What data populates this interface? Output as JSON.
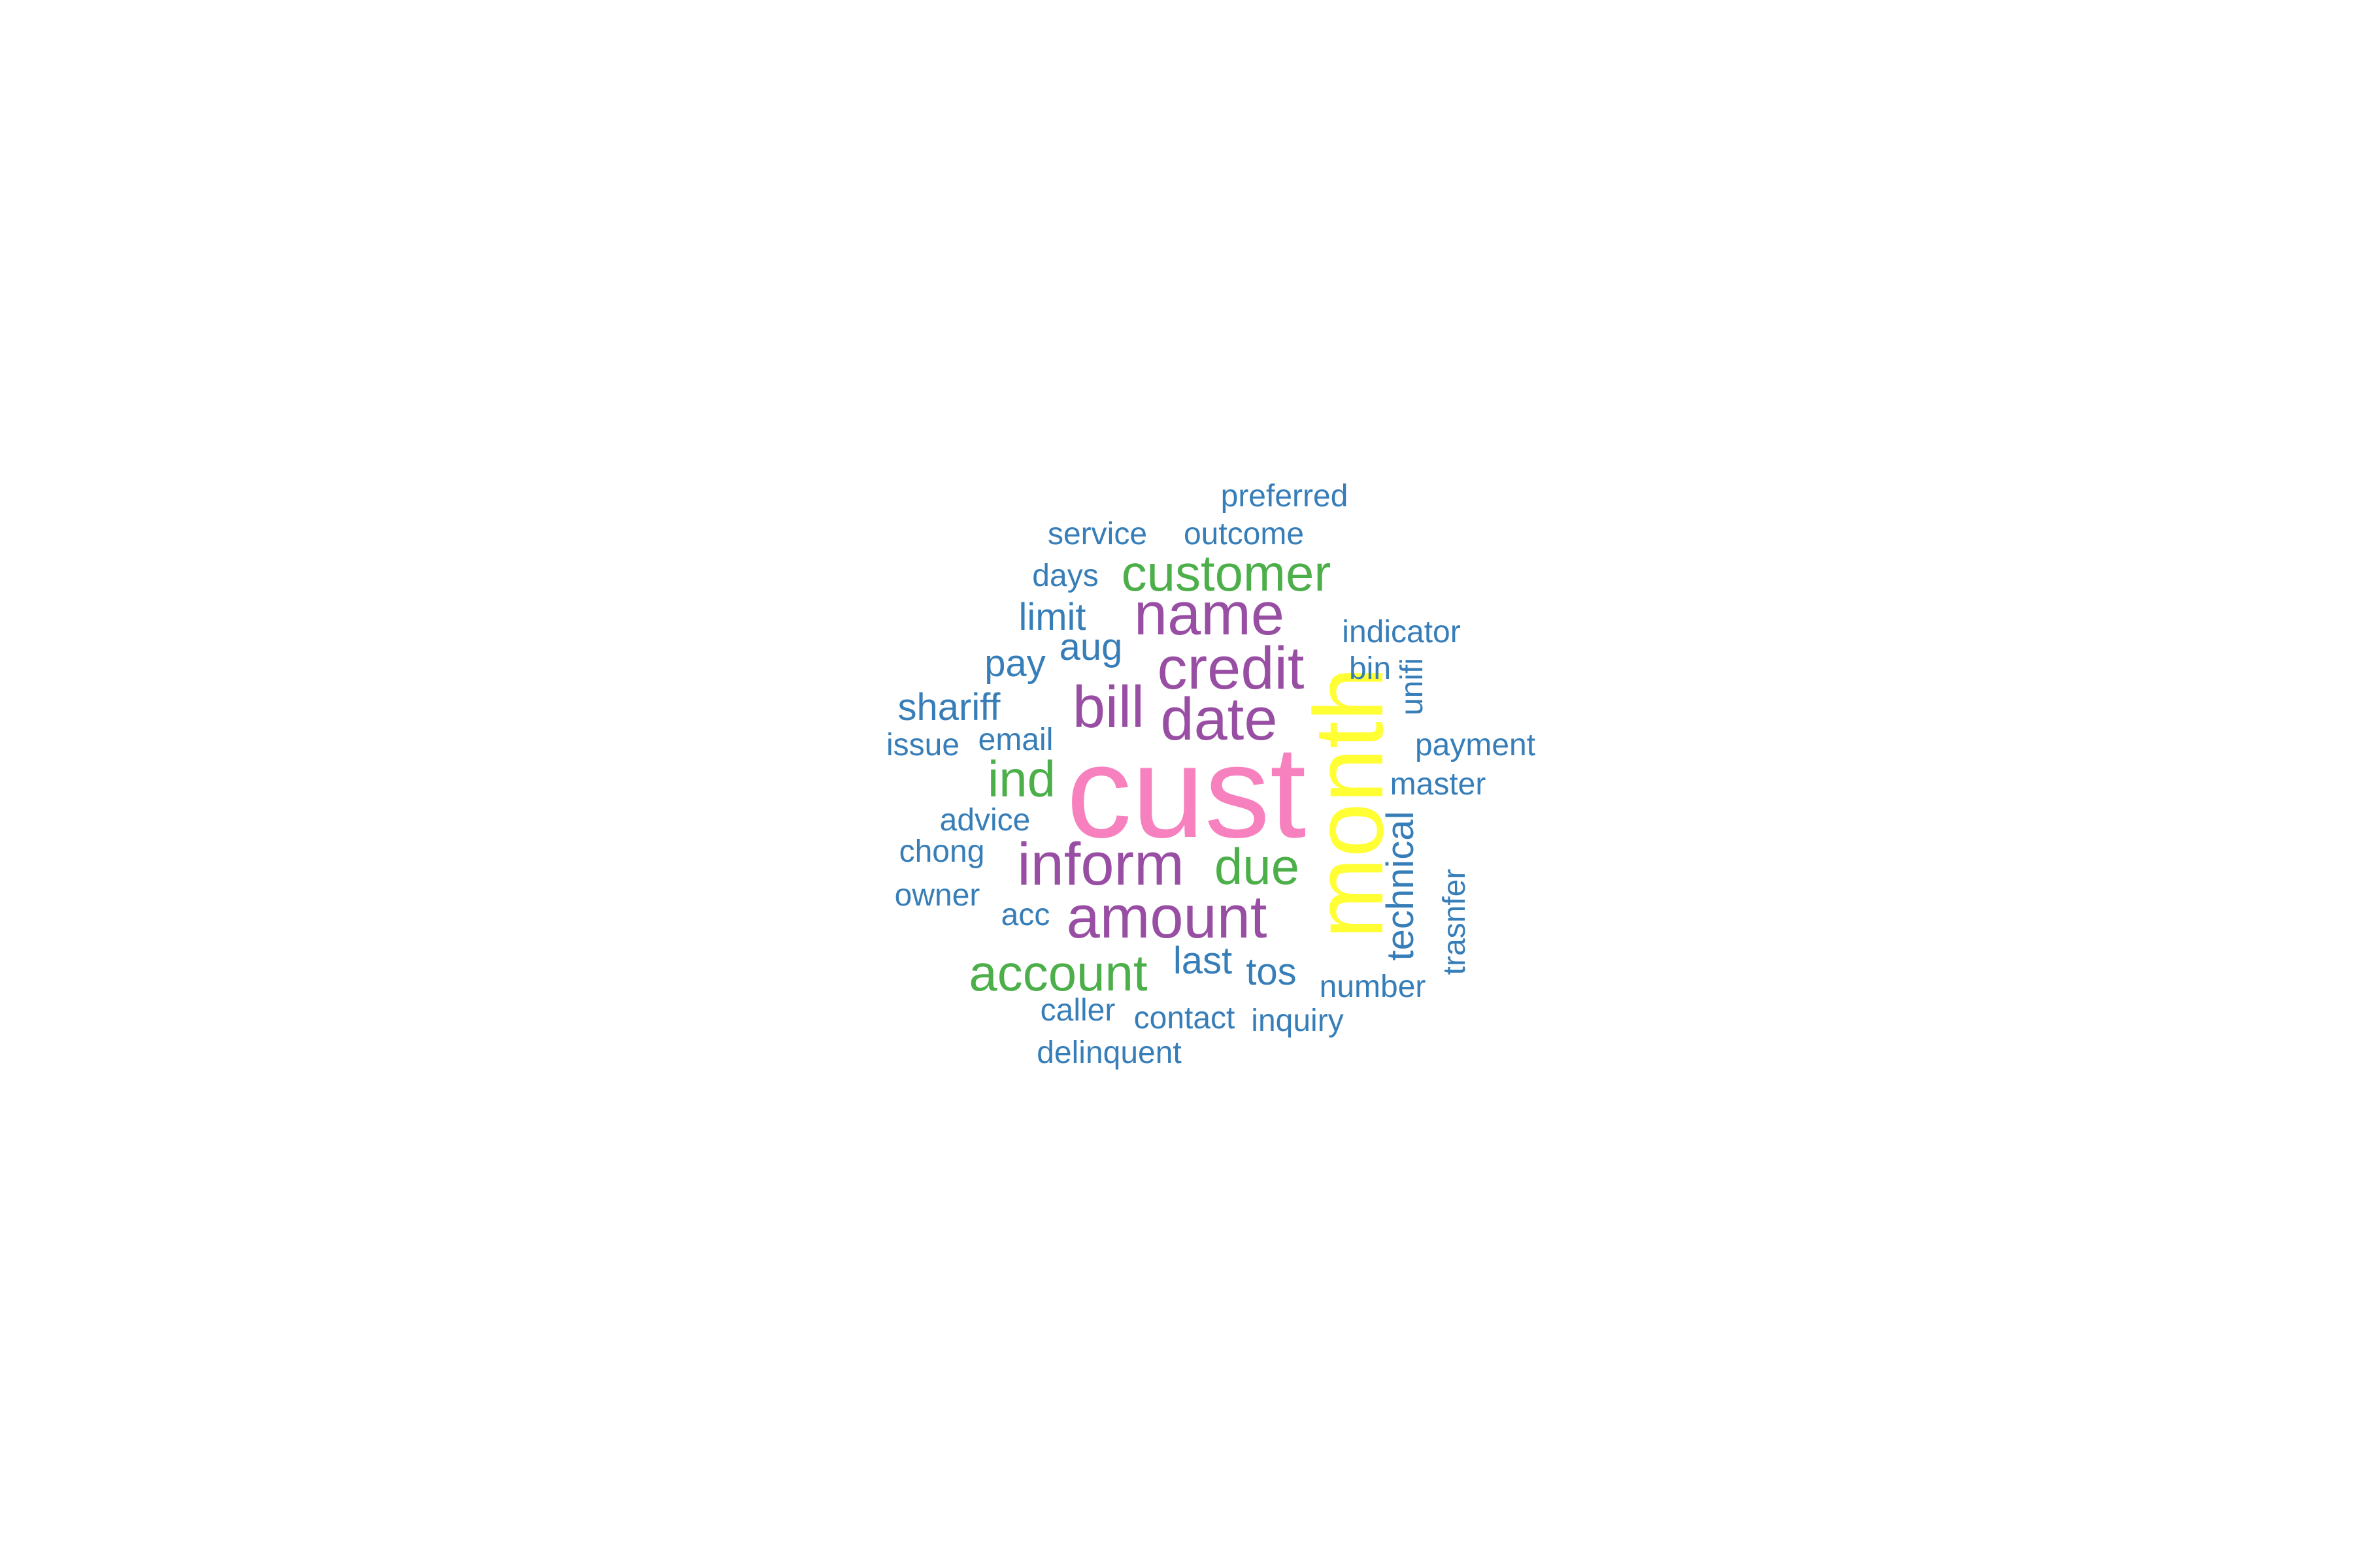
{
  "colors": {
    "background": "#ffffff",
    "pink": "#f781bf",
    "yellow": "#ffff33",
    "purple": "#984ea3",
    "green": "#4daf4a",
    "blue": "#377eb8"
  },
  "words": [
    {
      "text": "cust",
      "color": "pink",
      "vertical": false
    },
    {
      "text": "month",
      "color": "yellow",
      "vertical": true
    },
    {
      "text": "inform",
      "color": "purple",
      "vertical": false
    },
    {
      "text": "amount",
      "color": "purple",
      "vertical": false
    },
    {
      "text": "date",
      "color": "purple",
      "vertical": false
    },
    {
      "text": "credit",
      "color": "purple",
      "vertical": false
    },
    {
      "text": "name",
      "color": "purple",
      "vertical": false
    },
    {
      "text": "bill",
      "color": "purple",
      "vertical": false
    },
    {
      "text": "customer",
      "color": "green",
      "vertical": false
    },
    {
      "text": "account",
      "color": "green",
      "vertical": false
    },
    {
      "text": "due",
      "color": "green",
      "vertical": false
    },
    {
      "text": "ind",
      "color": "green",
      "vertical": false
    },
    {
      "text": "preferred",
      "color": "blue",
      "vertical": false
    },
    {
      "text": "service",
      "color": "blue",
      "vertical": false
    },
    {
      "text": "outcome",
      "color": "blue",
      "vertical": false
    },
    {
      "text": "days",
      "color": "blue",
      "vertical": false
    },
    {
      "text": "limit",
      "color": "blue",
      "vertical": false
    },
    {
      "text": "aug",
      "color": "blue",
      "vertical": false
    },
    {
      "text": "pay",
      "color": "blue",
      "vertical": false
    },
    {
      "text": "indicator",
      "color": "blue",
      "vertical": false
    },
    {
      "text": "bin",
      "color": "blue",
      "vertical": false
    },
    {
      "text": "unifi",
      "color": "blue",
      "vertical": true
    },
    {
      "text": "shariff",
      "color": "blue",
      "vertical": false
    },
    {
      "text": "issue",
      "color": "blue",
      "vertical": false
    },
    {
      "text": "email",
      "color": "blue",
      "vertical": false
    },
    {
      "text": "payment",
      "color": "blue",
      "vertical": false
    },
    {
      "text": "master",
      "color": "blue",
      "vertical": false
    },
    {
      "text": "advice",
      "color": "blue",
      "vertical": false
    },
    {
      "text": "chong",
      "color": "blue",
      "vertical": false
    },
    {
      "text": "technical",
      "color": "blue",
      "vertical": true
    },
    {
      "text": "owner",
      "color": "blue",
      "vertical": false
    },
    {
      "text": "acc",
      "color": "blue",
      "vertical": false
    },
    {
      "text": "trasnfer",
      "color": "blue",
      "vertical": true
    },
    {
      "text": "last",
      "color": "blue",
      "vertical": false
    },
    {
      "text": "tos",
      "color": "blue",
      "vertical": false
    },
    {
      "text": "number",
      "color": "blue",
      "vertical": false
    },
    {
      "text": "caller",
      "color": "blue",
      "vertical": false
    },
    {
      "text": "contact",
      "color": "blue",
      "vertical": false
    },
    {
      "text": "inquiry",
      "color": "blue",
      "vertical": false
    },
    {
      "text": "delinquent",
      "color": "blue",
      "vertical": false
    }
  ]
}
